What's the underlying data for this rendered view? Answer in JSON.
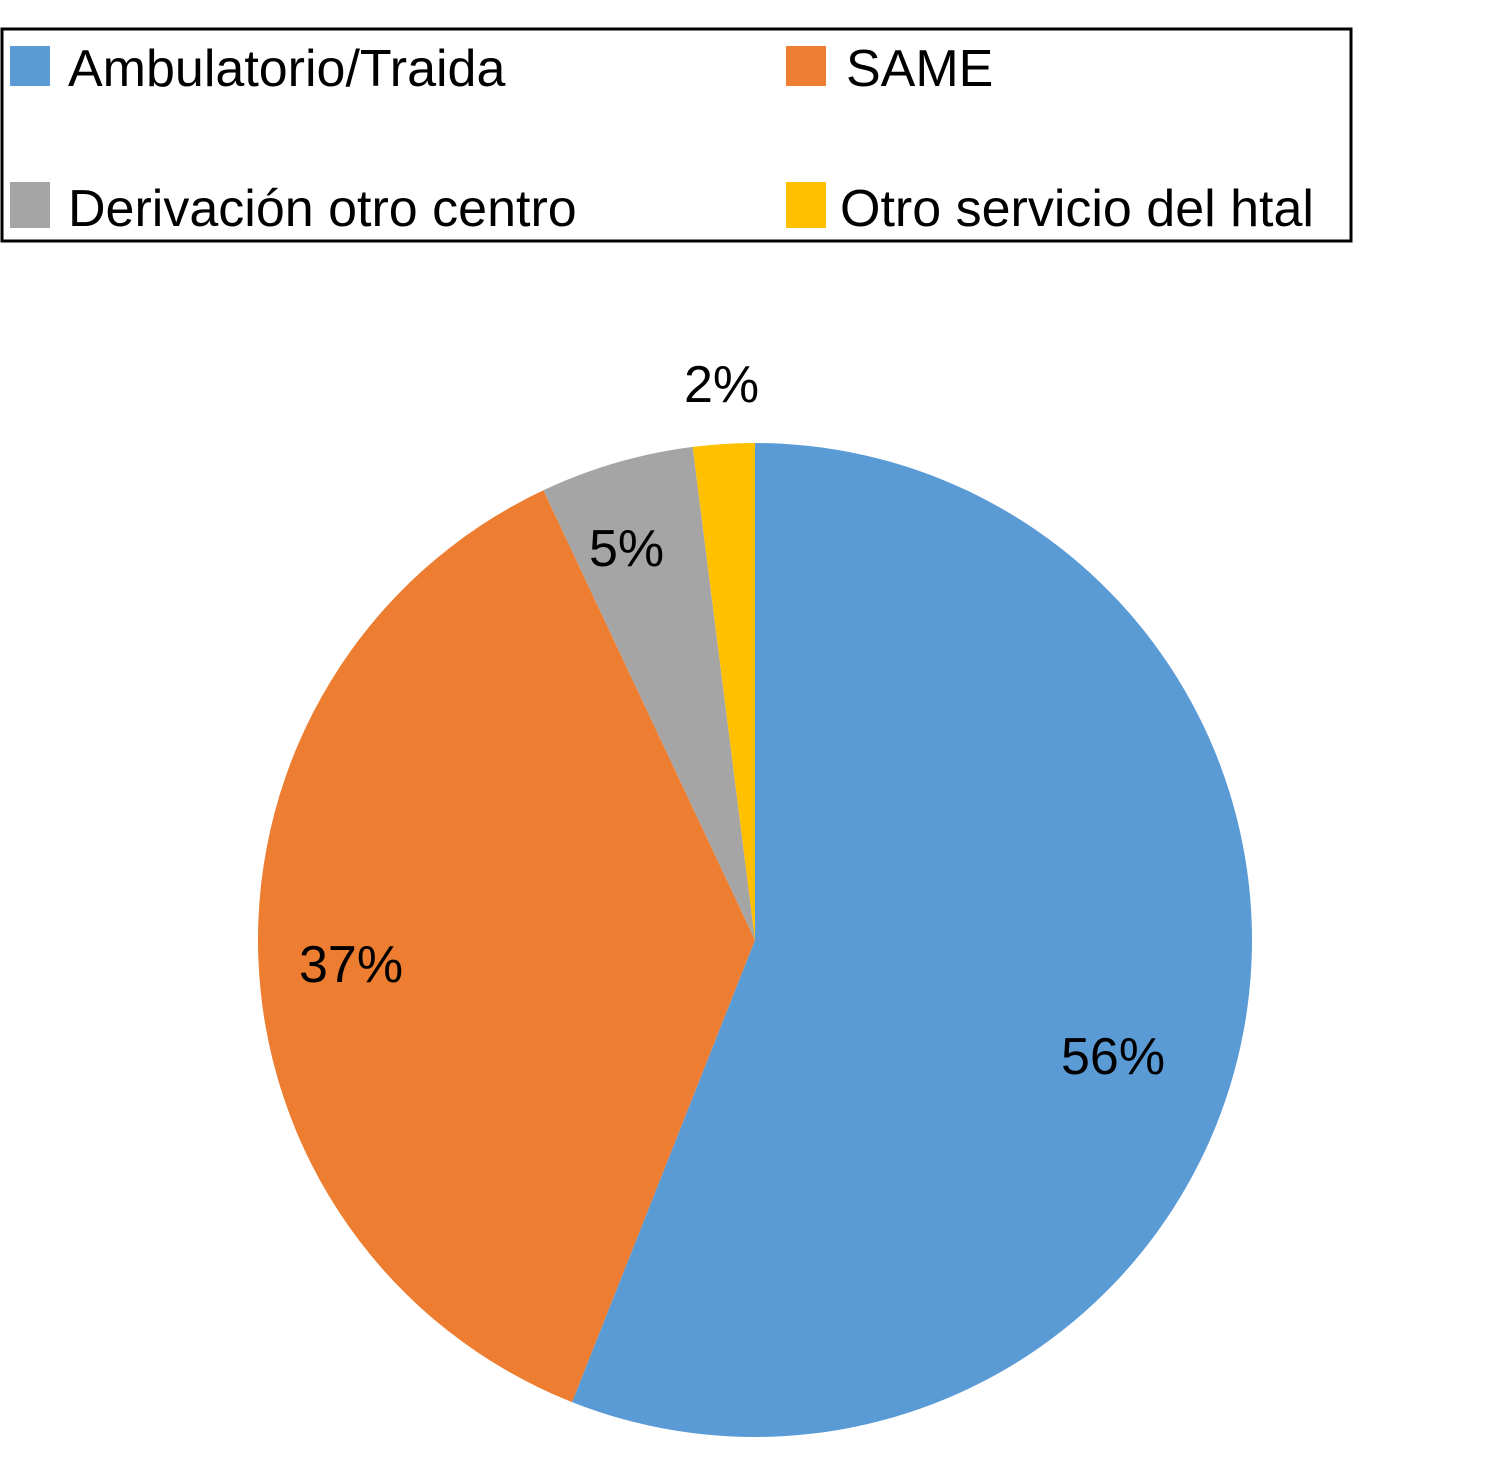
{
  "chart_data": {
    "type": "pie",
    "title": "",
    "categories": [
      "Ambulatorio/Traida",
      "SAME",
      "Derivación otro centro",
      "Otro servicio del htal"
    ],
    "values": [
      56,
      37,
      5,
      2
    ],
    "value_labels": [
      "56%",
      "37%",
      "5%",
      "2%"
    ],
    "colors": [
      "#5b9bd5",
      "#ed7d31",
      "#a5a5a5",
      "#ffc000"
    ],
    "start_angle_deg": 0,
    "direction": "clockwise",
    "legend": {
      "position": "top",
      "columns": 2,
      "entries": [
        "Ambulatorio/Traida",
        "SAME",
        "Derivación otro centro",
        "Otro servicio del htal"
      ]
    }
  }
}
